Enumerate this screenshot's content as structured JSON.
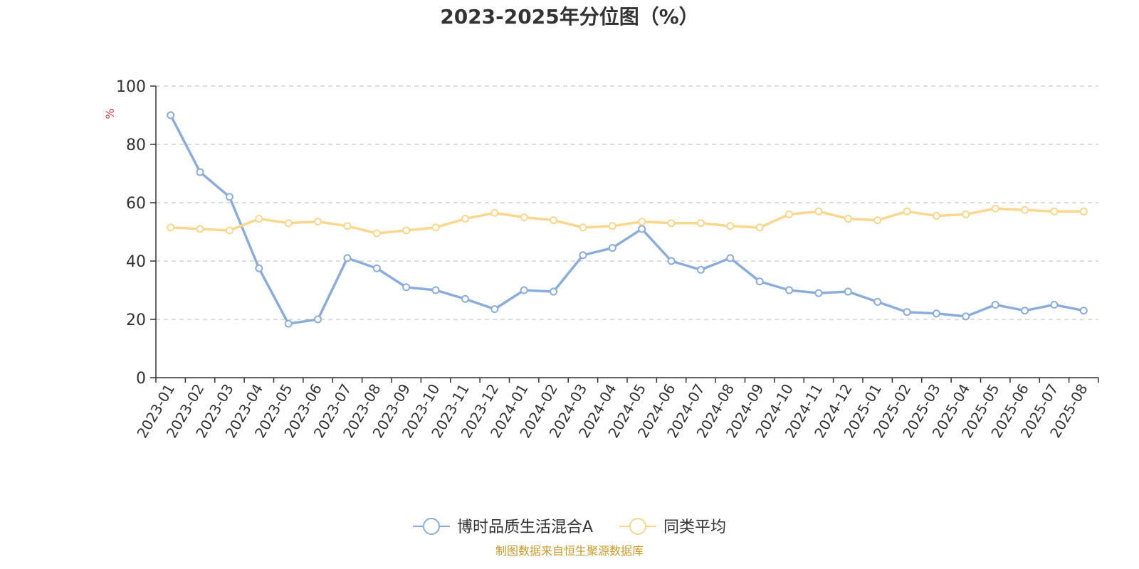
{
  "chart_data": {
    "type": "line",
    "title": "2023-2025年分位图（%）",
    "y_unit": "%",
    "ylim": [
      0,
      100
    ],
    "yticks": [
      0,
      20,
      40,
      60,
      80,
      100
    ],
    "grid": true,
    "legend_placement": "bottom-center",
    "categories": [
      "2023-01",
      "2023-02",
      "2023-03",
      "2023-04",
      "2023-05",
      "2023-06",
      "2023-07",
      "2023-08",
      "2023-09",
      "2023-10",
      "2023-11",
      "2023-12",
      "2024-01",
      "2024-02",
      "2024-03",
      "2024-04",
      "2024-05",
      "2024-06",
      "2024-07",
      "2024-08",
      "2024-09",
      "2024-10",
      "2024-11",
      "2024-12",
      "2025-01",
      "2025-02",
      "2025-03",
      "2025-04",
      "2025-05",
      "2025-06",
      "2025-07",
      "2025-08"
    ],
    "series": [
      {
        "name": "博时品质生活混合A",
        "color": "#8aaddc",
        "values": [
          90,
          70.5,
          62,
          37.5,
          18.5,
          20,
          41,
          37.5,
          31,
          30,
          27,
          23.5,
          30,
          29.5,
          42,
          44.5,
          51,
          40,
          37,
          41,
          33,
          30,
          29,
          29.5,
          26,
          22.5,
          22,
          21,
          25,
          23,
          25,
          23
        ]
      },
      {
        "name": "同类平均",
        "color": "#fbd68d",
        "values": [
          51.5,
          51,
          50.5,
          54.5,
          53,
          53.5,
          52,
          49.5,
          50.5,
          51.5,
          54.5,
          56.5,
          55,
          54,
          51.5,
          52,
          53.5,
          53,
          53,
          52,
          51.5,
          56,
          57,
          54.5,
          54,
          57,
          55.5,
          56,
          58,
          57.5,
          57,
          57
        ]
      }
    ],
    "source": "制图数据来自恒生聚源数据库"
  }
}
